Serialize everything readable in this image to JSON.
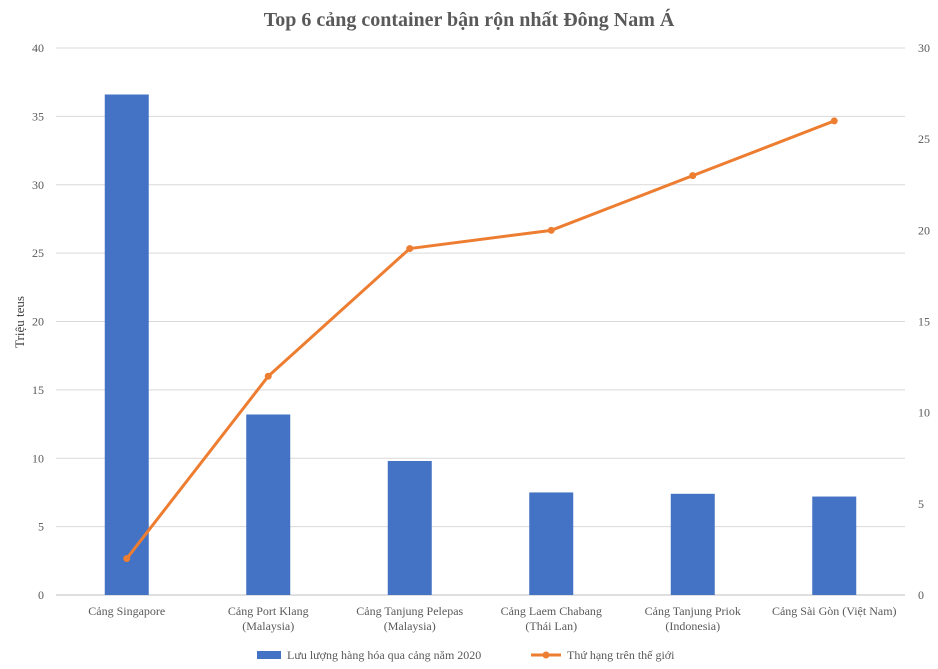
{
  "chart_data": {
    "type": "bar",
    "title": "Top 6 cảng container bận rộn nhất Đông Nam Á",
    "ylabel": "Triệu teus",
    "y2label": "",
    "ylim": [
      0,
      40
    ],
    "y2lim": [
      0,
      30
    ],
    "yticks": [
      0,
      5,
      10,
      15,
      20,
      25,
      30,
      35,
      40
    ],
    "y2ticks": [
      0,
      5,
      10,
      15,
      20,
      25,
      30
    ],
    "grid": true,
    "legend_position": "bottom",
    "categories": [
      [
        "Cảng Singapore"
      ],
      [
        "Cảng Port Klang",
        "(Malaysia)"
      ],
      [
        "Cảng Tanjung Pelepas",
        "(Malaysia)"
      ],
      [
        "Cảng Laem Chabang",
        "(Thái Lan)"
      ],
      [
        "Cảng Tanjung Priok",
        "(Indonesia)"
      ],
      [
        "Cảng Sài Gòn (Việt Nam)"
      ]
    ],
    "series": [
      {
        "name": "Lưu lượng hàng hóa qua cảng năm 2020",
        "type": "bar",
        "axis": "left",
        "color": "#4472C4",
        "values": [
          36.6,
          13.2,
          9.8,
          7.5,
          7.4,
          7.2
        ]
      },
      {
        "name": "Thứ hạng trên thế giới",
        "type": "line",
        "axis": "right",
        "color": "#ED7D31",
        "values": [
          2,
          12,
          19,
          20,
          23,
          26
        ]
      }
    ]
  }
}
